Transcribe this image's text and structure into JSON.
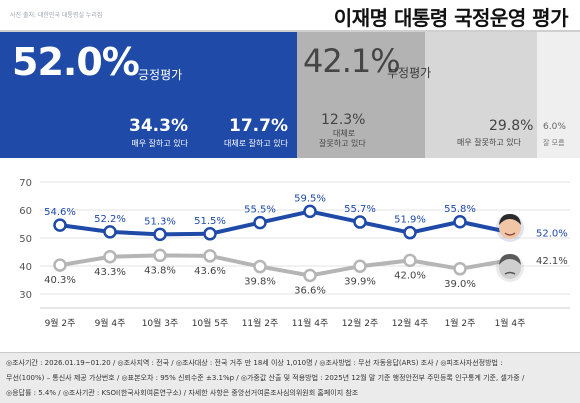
{
  "header": {
    "credit": "사진 출처: 대한민국 대통령실 누리집",
    "title": "이재명 대통령 국정운영 평가"
  },
  "summary": {
    "positive": {
      "value": "52.0%",
      "label": "긍정평가",
      "breakdown": [
        {
          "value": "34.3%",
          "label": "매우 잘하고 있다"
        },
        {
          "value": "17.7%",
          "label": "대체로 잘하고 있다"
        }
      ]
    },
    "negative": {
      "value": "42.1%",
      "label": "부정평가",
      "breakdown": [
        {
          "value": "12.3%",
          "label_line1": "대체로",
          "label_line2": "잘못하고 있다"
        },
        {
          "value": "29.8%",
          "label": "매우 잘못하고 있다"
        }
      ]
    },
    "dont_know": {
      "value": "6.0%",
      "label": "잘 모름"
    },
    "colors": {
      "positive": "#1f4aa8",
      "negative_light": "#d7d7d7",
      "negative_dark": "#b3b3b3"
    }
  },
  "chart_data": {
    "type": "line",
    "categories": [
      "9월 2주",
      "9월 4주",
      "10월 3주",
      "10월 5주",
      "11월 2주",
      "11월 4주",
      "12월 2주",
      "12월 4주",
      "1월 2주",
      "1월 4주"
    ],
    "series": [
      {
        "name": "긍정평가",
        "color": "#1f4aa8",
        "values": [
          54.6,
          52.2,
          51.3,
          51.5,
          55.5,
          59.5,
          55.7,
          51.9,
          55.8,
          52.0
        ],
        "labels": [
          "54.6%",
          "52.2%",
          "51.3%",
          "51.5%",
          "55.5%",
          "59.5%",
          "55.7%",
          "51.9%",
          "55.8%",
          "52.0%"
        ]
      },
      {
        "name": "부정평가",
        "color": "#b5b5b5",
        "values": [
          40.3,
          43.3,
          43.8,
          43.6,
          39.8,
          36.6,
          39.9,
          42.0,
          39.0,
          42.1
        ],
        "labels": [
          "40.3%",
          "43.3%",
          "43.8%",
          "43.6%",
          "39.8%",
          "36.6%",
          "39.9%",
          "42.0%",
          "39.0%",
          "42.1%"
        ]
      }
    ],
    "yticks": [
      30,
      40,
      50,
      60,
      70
    ],
    "ylim": [
      30,
      70
    ],
    "grid": true
  },
  "footer": {
    "lines": [
      "◎조사기간 : 2026.01.19~01.20 / ◎조사지역 : 전국 / ◎조사대상 : 전국 거주 만 18세 이상 1,010명 / ◎조사방법 : 무선 자동응답(ARS) 조사 / ◎피조사자선정방법 :",
      "무선(100%) – 통신사 제공 가상번호 / ◎표본오차 : 95% 신뢰수준 ±3.1%p / ◎가중값 산출 및 적용방법 : 2025년 12월 말 기준 행정안전부 주민등록 인구통계 기준, 셀가중 /",
      "◎응답률 : 5.4% / ◎조사기관 : KSOI(한국사회여론연구소) / 자세한 사항은 중앙선거여론조사심의위원회 홈페이지 참조"
    ]
  }
}
